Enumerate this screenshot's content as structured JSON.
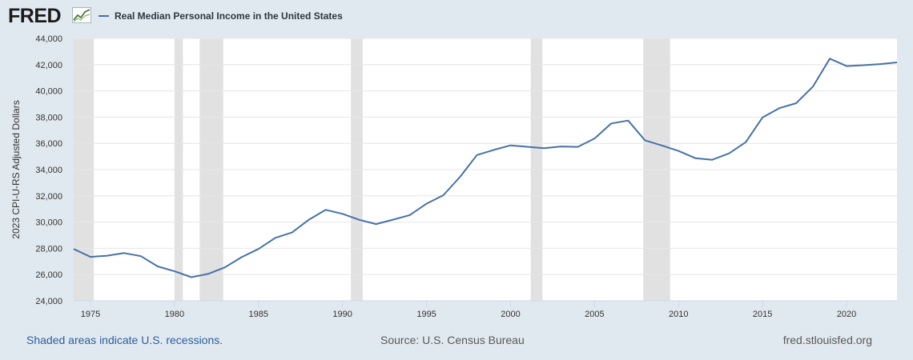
{
  "header": {
    "logo_text": "FRED",
    "logo_icon": "line-chart-icon",
    "series_title": "Real Median Personal Income in the United States"
  },
  "footer": {
    "recession_note": "Shaded areas indicate U.S. recessions.",
    "source": "Source: U.S. Census Bureau",
    "site": "fred.stlouisfed.org"
  },
  "colors": {
    "line": "#4572a7",
    "recession": "#e1e1e1",
    "background": "#e1e9f0",
    "plot_background": "#ffffff",
    "gridline": "#e6e6e6"
  },
  "chart_data": {
    "type": "line",
    "title": "",
    "xlabel": "",
    "ylabel": "2023 CPI-U-RS Adjusted Dollars",
    "xlim": [
      1974,
      2023
    ],
    "ylim": [
      24000,
      44000
    ],
    "x_ticks": [
      1975,
      1980,
      1985,
      1990,
      1995,
      2000,
      2005,
      2010,
      2015,
      2020
    ],
    "y_ticks": [
      24000,
      26000,
      28000,
      30000,
      32000,
      34000,
      36000,
      38000,
      40000,
      42000,
      44000
    ],
    "y_tick_labels": [
      "24,000",
      "26,000",
      "28,000",
      "30,000",
      "32,000",
      "34,000",
      "36,000",
      "38,000",
      "40,000",
      "42,000",
      "44,000"
    ],
    "grid": true,
    "series": [
      {
        "name": "Real Median Personal Income in the United States",
        "x": [
          1974,
          1975,
          1976,
          1977,
          1978,
          1979,
          1980,
          1981,
          1982,
          1983,
          1984,
          1985,
          1986,
          1987,
          1988,
          1989,
          1990,
          1991,
          1992,
          1993,
          1994,
          1995,
          1996,
          1997,
          1998,
          1999,
          2000,
          2001,
          2002,
          2003,
          2004,
          2005,
          2006,
          2007,
          2008,
          2009,
          2010,
          2011,
          2012,
          2013,
          2014,
          2015,
          2016,
          2017,
          2018,
          2019,
          2020,
          2021,
          2022,
          2023
        ],
        "values": [
          27950,
          27350,
          27440,
          27640,
          27400,
          26620,
          26250,
          25800,
          26050,
          26550,
          27330,
          27950,
          28800,
          29210,
          30180,
          30930,
          30630,
          30170,
          29850,
          30180,
          30530,
          31400,
          32050,
          33450,
          35110,
          35500,
          35850,
          35740,
          35630,
          35760,
          35730,
          36370,
          37520,
          37740,
          36230,
          35840,
          35420,
          34870,
          34750,
          35230,
          36090,
          37980,
          38680,
          39060,
          40330,
          42460,
          41890,
          41960,
          42040,
          42170
        ]
      }
    ],
    "recessions": [
      [
        1973.9,
        1975.2
      ],
      [
        1980.0,
        1980.5
      ],
      [
        1981.5,
        1982.9
      ],
      [
        1990.5,
        1991.2
      ],
      [
        2001.2,
        2001.9
      ],
      [
        2007.9,
        2009.5
      ]
    ]
  }
}
